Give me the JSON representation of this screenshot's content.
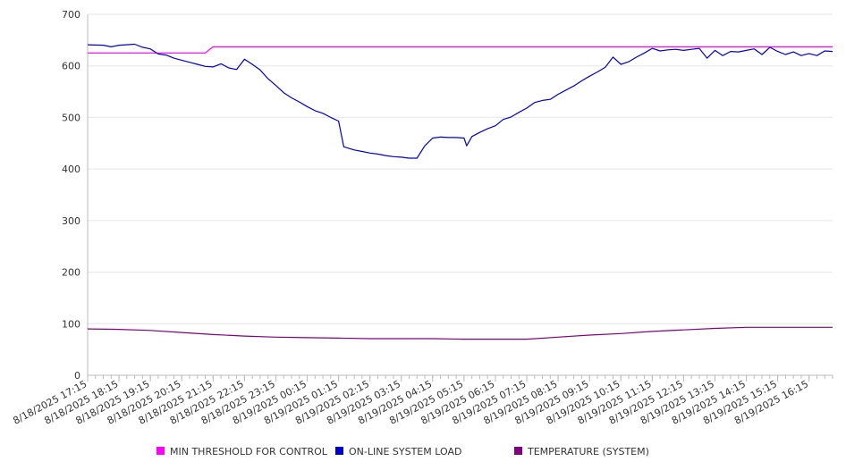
{
  "chart_data": {
    "type": "line",
    "title": "",
    "xlabel": "",
    "ylabel": "",
    "ylim": [
      0,
      700
    ],
    "yticks": [
      0,
      100,
      200,
      300,
      400,
      500,
      600,
      700
    ],
    "grid": true,
    "legend_position": "bottom",
    "x_tick_labels": [
      "8/18/2025 17:15",
      "8/18/2025 18:15",
      "8/18/2025 19:15",
      "8/18/2025 20:15",
      "8/18/2025 21:15",
      "8/18/2025 22:15",
      "8/18/2025 23:15",
      "8/19/2025 00:15",
      "8/19/2025 01:15",
      "8/19/2025 02:15",
      "8/19/2025 03:15",
      "8/19/2025 04:15",
      "8/19/2025 05:15",
      "8/19/2025 06:15",
      "8/19/2025 07:15",
      "8/19/2025 08:15",
      "8/19/2025 09:15",
      "8/19/2025 10:15",
      "8/19/2025 11:15",
      "8/19/2025 12:15",
      "8/19/2025 13:15",
      "8/19/2025 14:15",
      "8/19/2025 15:15",
      "8/19/2025 16:15"
    ],
    "series": [
      {
        "name": "MIN THRESHOLD FOR CONTROL",
        "color": "#ff00ff",
        "points": [
          [
            "8/18/2025 17:15",
            625
          ],
          [
            "8/18/2025 21:00",
            625
          ],
          [
            "8/18/2025 21:15",
            637
          ],
          [
            "8/19/2025 17:00",
            637
          ]
        ]
      },
      {
        "name": "ON-LINE SYSTEM LOAD",
        "color": "#0000cc",
        "points": [
          [
            "8/18/2025 17:15",
            641
          ],
          [
            "8/18/2025 17:45",
            640
          ],
          [
            "8/18/2025 18:00",
            637
          ],
          [
            "8/18/2025 18:15",
            640
          ],
          [
            "8/18/2025 18:45",
            642
          ],
          [
            "8/18/2025 19:00",
            636
          ],
          [
            "8/18/2025 19:15",
            633
          ],
          [
            "8/18/2025 19:30",
            623
          ],
          [
            "8/18/2025 19:45",
            621
          ],
          [
            "8/18/2025 20:00",
            615
          ],
          [
            "8/18/2025 20:15",
            611
          ],
          [
            "8/18/2025 20:30",
            607
          ],
          [
            "8/18/2025 20:45",
            603
          ],
          [
            "8/18/2025 21:00",
            599
          ],
          [
            "8/18/2025 21:15",
            598
          ],
          [
            "8/18/2025 21:30",
            604
          ],
          [
            "8/18/2025 21:45",
            596
          ],
          [
            "8/18/2025 22:00",
            593
          ],
          [
            "8/18/2025 22:15",
            613
          ],
          [
            "8/18/2025 22:30",
            603
          ],
          [
            "8/18/2025 22:45",
            592
          ],
          [
            "8/18/2025 23:00",
            575
          ],
          [
            "8/18/2025 23:15",
            562
          ],
          [
            "8/18/2025 23:30",
            548
          ],
          [
            "8/18/2025 23:45",
            538
          ],
          [
            "8/19/2025 00:00",
            530
          ],
          [
            "8/19/2025 00:15",
            521
          ],
          [
            "8/19/2025 00:30",
            513
          ],
          [
            "8/19/2025 00:45",
            508
          ],
          [
            "8/19/2025 01:00",
            500
          ],
          [
            "8/19/2025 01:15",
            493
          ],
          [
            "8/19/2025 01:25",
            443
          ],
          [
            "8/19/2025 01:45",
            437
          ],
          [
            "8/19/2025 02:00",
            434
          ],
          [
            "8/19/2025 02:15",
            431
          ],
          [
            "8/19/2025 02:30",
            429
          ],
          [
            "8/19/2025 02:45",
            426
          ],
          [
            "8/19/2025 03:00",
            424
          ],
          [
            "8/19/2025 03:15",
            423
          ],
          [
            "8/19/2025 03:30",
            421
          ],
          [
            "8/19/2025 03:45",
            421
          ],
          [
            "8/19/2025 04:00",
            445
          ],
          [
            "8/19/2025 04:15",
            460
          ],
          [
            "8/19/2025 04:30",
            462
          ],
          [
            "8/19/2025 04:45",
            461
          ],
          [
            "8/19/2025 05:00",
            461
          ],
          [
            "8/19/2025 05:15",
            460
          ],
          [
            "8/19/2025 05:20",
            445
          ],
          [
            "8/19/2025 05:30",
            463
          ],
          [
            "8/19/2025 05:45",
            471
          ],
          [
            "8/19/2025 06:00",
            478
          ],
          [
            "8/19/2025 06:15",
            484
          ],
          [
            "8/19/2025 06:30",
            496
          ],
          [
            "8/19/2025 06:45",
            501
          ],
          [
            "8/19/2025 07:00",
            510
          ],
          [
            "8/19/2025 07:15",
            518
          ],
          [
            "8/19/2025 07:30",
            529
          ],
          [
            "8/19/2025 07:45",
            533
          ],
          [
            "8/19/2025 08:00",
            535
          ],
          [
            "8/19/2025 08:15",
            545
          ],
          [
            "8/19/2025 08:30",
            553
          ],
          [
            "8/19/2025 08:45",
            561
          ],
          [
            "8/19/2025 09:00",
            571
          ],
          [
            "8/19/2025 09:15",
            580
          ],
          [
            "8/19/2025 09:30",
            588
          ],
          [
            "8/19/2025 09:45",
            597
          ],
          [
            "8/19/2025 10:00",
            617
          ],
          [
            "8/19/2025 10:15",
            603
          ],
          [
            "8/19/2025 10:30",
            608
          ],
          [
            "8/19/2025 10:45",
            617
          ],
          [
            "8/19/2025 11:00",
            625
          ],
          [
            "8/19/2025 11:15",
            634
          ],
          [
            "8/19/2025 11:30",
            629
          ],
          [
            "8/19/2025 11:45",
            631
          ],
          [
            "8/19/2025 12:00",
            632
          ],
          [
            "8/19/2025 12:15",
            630
          ],
          [
            "8/19/2025 12:30",
            632
          ],
          [
            "8/19/2025 12:45",
            634
          ],
          [
            "8/19/2025 13:00",
            615
          ],
          [
            "8/19/2025 13:15",
            630
          ],
          [
            "8/19/2025 13:30",
            620
          ],
          [
            "8/19/2025 13:45",
            628
          ],
          [
            "8/19/2025 14:00",
            627
          ],
          [
            "8/19/2025 14:15",
            630
          ],
          [
            "8/19/2025 14:30",
            633
          ],
          [
            "8/19/2025 14:45",
            622
          ],
          [
            "8/19/2025 15:00",
            636
          ],
          [
            "8/19/2025 15:15",
            628
          ],
          [
            "8/19/2025 15:30",
            622
          ],
          [
            "8/19/2025 15:45",
            627
          ],
          [
            "8/19/2025 16:00",
            620
          ],
          [
            "8/19/2025 16:15",
            624
          ],
          [
            "8/19/2025 16:30",
            620
          ],
          [
            "8/19/2025 16:45",
            629
          ],
          [
            "8/19/2025 17:00",
            628
          ]
        ]
      },
      {
        "name": "TEMPERATURE (SYSTEM)",
        "color": "#800080",
        "points": [
          [
            "8/18/2025 17:15",
            90
          ],
          [
            "8/18/2025 18:15",
            89
          ],
          [
            "8/18/2025 19:15",
            87
          ],
          [
            "8/18/2025 20:15",
            83
          ],
          [
            "8/18/2025 21:15",
            79
          ],
          [
            "8/18/2025 22:15",
            76
          ],
          [
            "8/18/2025 23:15",
            74
          ],
          [
            "8/19/2025 00:15",
            73
          ],
          [
            "8/19/2025 01:15",
            72
          ],
          [
            "8/19/2025 02:15",
            71
          ],
          [
            "8/19/2025 03:15",
            71
          ],
          [
            "8/19/2025 04:15",
            71
          ],
          [
            "8/19/2025 05:15",
            70
          ],
          [
            "8/19/2025 06:15",
            70
          ],
          [
            "8/19/2025 07:15",
            70
          ],
          [
            "8/19/2025 08:15",
            74
          ],
          [
            "8/19/2025 09:15",
            78
          ],
          [
            "8/19/2025 10:15",
            81
          ],
          [
            "8/19/2025 11:15",
            85
          ],
          [
            "8/19/2025 12:15",
            88
          ],
          [
            "8/19/2025 13:15",
            91
          ],
          [
            "8/19/2025 14:15",
            93
          ],
          [
            "8/19/2025 15:15",
            93
          ],
          [
            "8/19/2025 16:15",
            93
          ],
          [
            "8/19/2025 17:00",
            93
          ]
        ]
      }
    ]
  }
}
